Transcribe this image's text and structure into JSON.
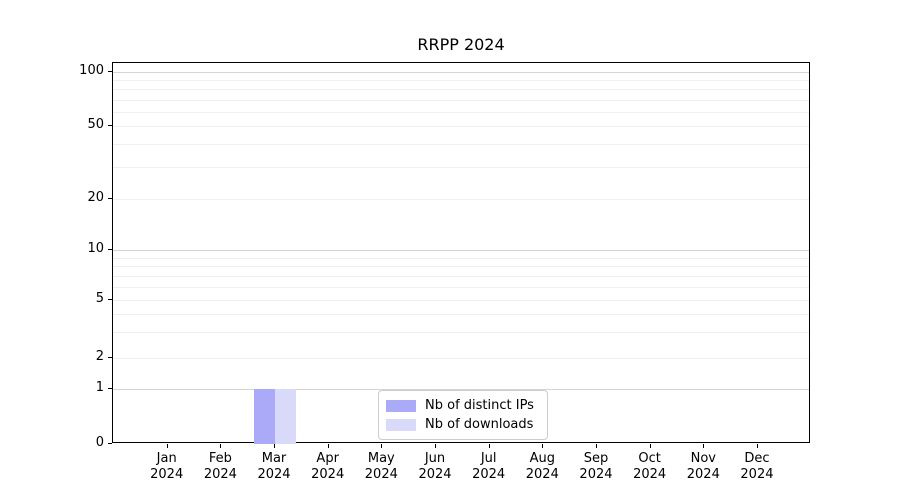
{
  "chart_data": {
    "type": "bar",
    "title": "RRPP 2024",
    "categories": [
      "Jan 2024",
      "Feb 2024",
      "Mar 2024",
      "Apr 2024",
      "May 2024",
      "Jun 2024",
      "Jul 2024",
      "Aug 2024",
      "Sep 2024",
      "Oct 2024",
      "Nov 2024",
      "Dec 2024"
    ],
    "series": [
      {
        "name": "Nb of distinct IPs",
        "color": "#aaaaf8",
        "values": [
          0,
          0,
          1,
          0,
          0,
          0,
          0,
          0,
          0,
          0,
          0,
          0
        ]
      },
      {
        "name": "Nb of downloads",
        "color": "#d9d9f9",
        "values": [
          0,
          0,
          1,
          0,
          0,
          0,
          0,
          0,
          0,
          0,
          0,
          0
        ]
      }
    ],
    "y_axis": {
      "scale": "symlog",
      "tick_labels": [
        "0",
        "1",
        "2",
        "5",
        "10",
        "20",
        "50",
        "100"
      ],
      "tick_values": [
        0,
        1,
        2,
        5,
        10,
        20,
        50,
        100
      ],
      "ylim": [
        0,
        100
      ]
    },
    "grid": true,
    "legend": {
      "position": "lower center",
      "entries": [
        "Nb of distinct IPs",
        "Nb of downloads"
      ]
    }
  }
}
